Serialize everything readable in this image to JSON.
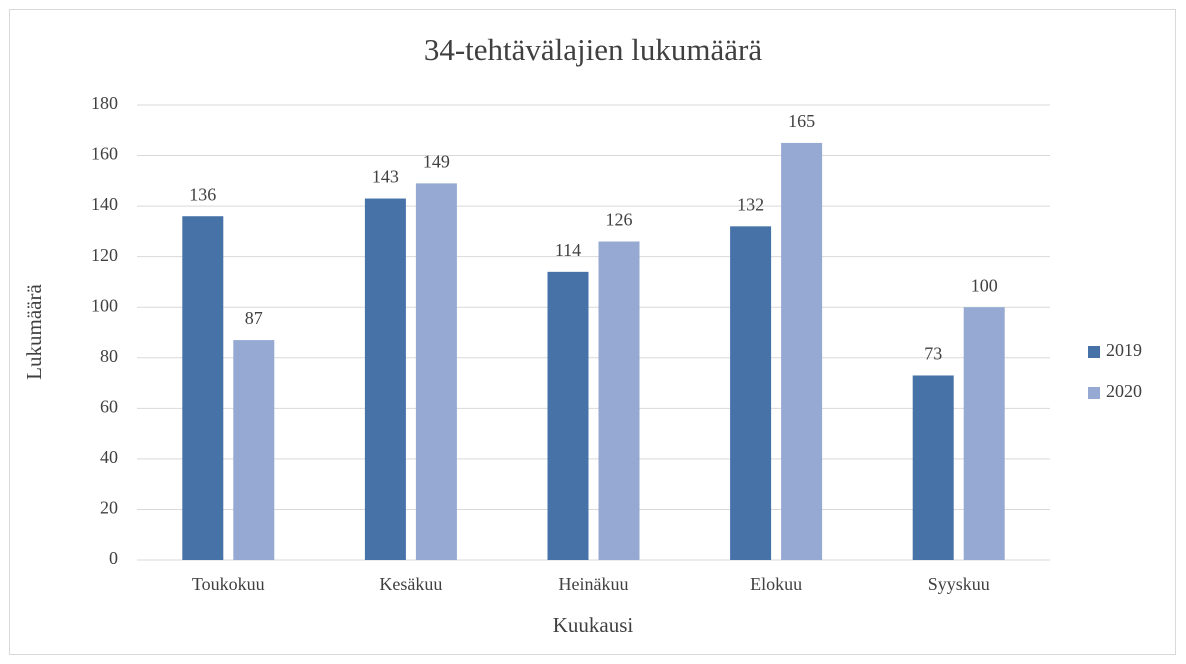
{
  "chart_data": {
    "type": "bar",
    "title": "34-tehtävälajien lukumäärä",
    "x_label": "Kuukausi",
    "y_label": "Lukumäärä",
    "categories": [
      "Toukokuu",
      "Kesäkuu",
      "Heinäkuu",
      "Elokuu",
      "Syyskuu"
    ],
    "series": [
      {
        "name": "2019",
        "color": "#4672a8",
        "values": [
          136,
          143,
          114,
          132,
          73
        ]
      },
      {
        "name": "2020",
        "color": "#95a9d2",
        "values": [
          87,
          149,
          126,
          165,
          100
        ]
      }
    ],
    "ylim": [
      0,
      180
    ],
    "yticks": [
      0,
      20,
      40,
      60,
      80,
      100,
      120,
      140,
      160,
      180
    ],
    "grid": true,
    "legend": "right"
  }
}
